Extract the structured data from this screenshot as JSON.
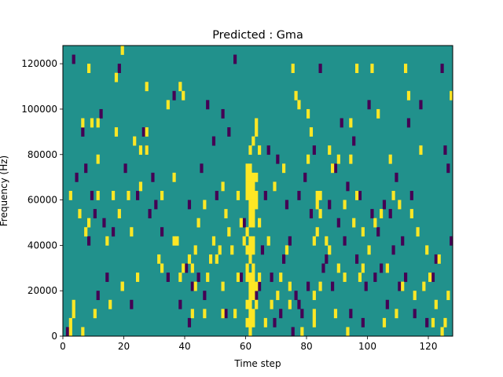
{
  "chart_data": {
    "type": "heatmap",
    "title": "Predicted : Gma",
    "xlabel": "Time step",
    "ylabel": "Frequency (Hz)",
    "xlim": [
      0,
      128
    ],
    "ylim": [
      0,
      128000
    ],
    "x_ticks": [
      {
        "value": 0,
        "label": "0"
      },
      {
        "value": 20,
        "label": "20"
      },
      {
        "value": 40,
        "label": "40"
      },
      {
        "value": 60,
        "label": "60"
      },
      {
        "value": 80,
        "label": "80"
      },
      {
        "value": 100,
        "label": "100"
      },
      {
        "value": 120,
        "label": "120"
      }
    ],
    "y_ticks": [
      {
        "value": 0,
        "label": "0"
      },
      {
        "value": 20000,
        "label": "20000"
      },
      {
        "value": 40000,
        "label": "40000"
      },
      {
        "value": 60000,
        "label": "60000"
      },
      {
        "value": 80000,
        "label": "80000"
      },
      {
        "value": 100000,
        "label": "100000"
      },
      {
        "value": 120000,
        "label": "120000"
      }
    ],
    "grid": false,
    "colormap": "viridis",
    "colors": {
      "background": "#21918c",
      "high": "#fde725",
      "low": "#440154"
    },
    "cell_width_steps": 1,
    "cell_height_hz": 4000,
    "background_value": 0,
    "cells_high": [
      [
        2,
        4000
      ],
      [
        2,
        8000
      ],
      [
        3,
        12000
      ],
      [
        3,
        16000
      ],
      [
        2,
        64000
      ],
      [
        5,
        56000
      ],
      [
        6,
        4000
      ],
      [
        6,
        96000
      ],
      [
        7,
        48000
      ],
      [
        8,
        120000
      ],
      [
        8,
        52000
      ],
      [
        9,
        96000
      ],
      [
        10,
        12000
      ],
      [
        11,
        96000
      ],
      [
        11,
        64000
      ],
      [
        11,
        80000
      ],
      [
        14,
        44000
      ],
      [
        15,
        16000
      ],
      [
        16,
        64000
      ],
      [
        17,
        92000
      ],
      [
        17,
        116000
      ],
      [
        18,
        56000
      ],
      [
        19,
        128000
      ],
      [
        19,
        24000
      ],
      [
        19,
        24000
      ],
      [
        21,
        64000
      ],
      [
        22,
        48000
      ],
      [
        23,
        88000
      ],
      [
        24,
        28000
      ],
      [
        25,
        68000
      ],
      [
        25,
        84000
      ],
      [
        27,
        112000
      ],
      [
        27,
        92000
      ],
      [
        27,
        84000
      ],
      [
        31,
        36000
      ],
      [
        32,
        32000
      ],
      [
        32,
        64000
      ],
      [
        34,
        104000
      ],
      [
        36,
        72000
      ],
      [
        36,
        44000
      ],
      [
        37,
        44000
      ],
      [
        38,
        112000
      ],
      [
        38,
        28000
      ],
      [
        39,
        108000
      ],
      [
        39,
        32000
      ],
      [
        41,
        36000
      ],
      [
        42,
        32000
      ],
      [
        42,
        12000
      ],
      [
        43,
        40000
      ],
      [
        43,
        24000
      ],
      [
        44,
        52000
      ],
      [
        46,
        60000
      ],
      [
        46,
        12000
      ],
      [
        47,
        28000
      ],
      [
        48,
        36000
      ],
      [
        49,
        44000
      ],
      [
        50,
        36000
      ],
      [
        51,
        40000
      ],
      [
        52,
        12000
      ],
      [
        52,
        68000
      ],
      [
        52,
        24000
      ],
      [
        53,
        56000
      ],
      [
        54,
        48000
      ],
      [
        55,
        40000
      ],
      [
        56,
        12000
      ],
      [
        57,
        64000
      ],
      [
        57,
        28000
      ],
      [
        58,
        52000
      ],
      [
        59,
        44000
      ],
      [
        60,
        8000
      ],
      [
        60,
        16000
      ],
      [
        60,
        28000
      ],
      [
        60,
        32000
      ],
      [
        60,
        40000
      ],
      [
        60,
        48000
      ],
      [
        60,
        64000
      ],
      [
        60,
        68000
      ],
      [
        60,
        72000
      ],
      [
        60,
        76000
      ],
      [
        61,
        4000
      ],
      [
        61,
        8000
      ],
      [
        61,
        12000
      ],
      [
        61,
        16000
      ],
      [
        61,
        20000
      ],
      [
        61,
        24000
      ],
      [
        61,
        28000
      ],
      [
        61,
        36000
      ],
      [
        61,
        40000
      ],
      [
        61,
        44000
      ],
      [
        61,
        52000
      ],
      [
        61,
        56000
      ],
      [
        61,
        60000
      ],
      [
        61,
        64000
      ],
      [
        61,
        68000
      ],
      [
        61,
        72000
      ],
      [
        61,
        76000
      ],
      [
        61,
        84000
      ],
      [
        62,
        8000
      ],
      [
        62,
        12000
      ],
      [
        62,
        20000
      ],
      [
        62,
        24000
      ],
      [
        62,
        28000
      ],
      [
        62,
        32000
      ],
      [
        62,
        40000
      ],
      [
        62,
        44000
      ],
      [
        62,
        52000
      ],
      [
        62,
        56000
      ],
      [
        62,
        60000
      ],
      [
        62,
        64000
      ],
      [
        62,
        68000
      ],
      [
        62,
        72000
      ],
      [
        62,
        88000
      ],
      [
        63,
        16000
      ],
      [
        63,
        24000
      ],
      [
        63,
        60000
      ],
      [
        63,
        64000
      ],
      [
        63,
        72000
      ],
      [
        63,
        92000
      ],
      [
        63,
        96000
      ],
      [
        64,
        28000
      ],
      [
        64,
        52000
      ],
      [
        64,
        84000
      ],
      [
        66,
        8000
      ],
      [
        67,
        44000
      ],
      [
        68,
        16000
      ],
      [
        69,
        68000
      ],
      [
        70,
        20000
      ],
      [
        71,
        28000
      ],
      [
        72,
        76000
      ],
      [
        73,
        40000
      ],
      [
        74,
        24000
      ],
      [
        74,
        16000
      ],
      [
        75,
        120000
      ],
      [
        76,
        108000
      ],
      [
        77,
        104000
      ],
      [
        78,
        4000
      ],
      [
        80,
        80000
      ],
      [
        80,
        100000
      ],
      [
        81,
        92000
      ],
      [
        82,
        8000
      ],
      [
        82,
        12000
      ],
      [
        82,
        20000
      ],
      [
        82,
        44000
      ],
      [
        83,
        60000
      ],
      [
        83,
        64000
      ],
      [
        83,
        48000
      ],
      [
        84,
        56000
      ],
      [
        84,
        64000
      ],
      [
        84,
        24000
      ],
      [
        86,
        44000
      ],
      [
        87,
        40000
      ],
      [
        87,
        84000
      ],
      [
        88,
        76000
      ],
      [
        89,
        12000
      ],
      [
        90,
        32000
      ],
      [
        90,
        80000
      ],
      [
        92,
        28000
      ],
      [
        92,
        60000
      ],
      [
        93,
        4000
      ],
      [
        94,
        96000
      ],
      [
        94,
        80000
      ],
      [
        95,
        52000
      ],
      [
        96,
        120000
      ],
      [
        96,
        64000
      ],
      [
        97,
        28000
      ],
      [
        98,
        32000
      ],
      [
        98,
        48000
      ],
      [
        100,
        40000
      ],
      [
        101,
        120000
      ],
      [
        102,
        52000
      ],
      [
        103,
        100000
      ],
      [
        104,
        56000
      ],
      [
        105,
        8000
      ],
      [
        106,
        32000
      ],
      [
        107,
        80000
      ],
      [
        108,
        64000
      ],
      [
        109,
        12000
      ],
      [
        110,
        60000
      ],
      [
        111,
        24000
      ],
      [
        112,
        120000
      ],
      [
        113,
        108000
      ],
      [
        114,
        56000
      ],
      [
        115,
        20000
      ],
      [
        116,
        48000
      ],
      [
        117,
        84000
      ],
      [
        118,
        24000
      ],
      [
        119,
        40000
      ],
      [
        120,
        28000
      ],
      [
        121,
        8000
      ],
      [
        122,
        16000
      ],
      [
        123,
        36000
      ],
      [
        124,
        4000
      ],
      [
        125,
        8000
      ],
      [
        126,
        20000
      ],
      [
        127,
        108000
      ]
    ],
    "cells_low": [
      [
        1,
        4000
      ],
      [
        3,
        124000
      ],
      [
        4,
        72000
      ],
      [
        6,
        92000
      ],
      [
        7,
        76000
      ],
      [
        8,
        44000
      ],
      [
        9,
        64000
      ],
      [
        10,
        56000
      ],
      [
        11,
        20000
      ],
      [
        12,
        100000
      ],
      [
        13,
        52000
      ],
      [
        14,
        28000
      ],
      [
        16,
        48000
      ],
      [
        18,
        120000
      ],
      [
        20,
        76000
      ],
      [
        22,
        16000
      ],
      [
        24,
        64000
      ],
      [
        26,
        92000
      ],
      [
        27,
        84000
      ],
      [
        28,
        56000
      ],
      [
        29,
        72000
      ],
      [
        30,
        60000
      ],
      [
        32,
        48000
      ],
      [
        34,
        28000
      ],
      [
        36,
        108000
      ],
      [
        38,
        16000
      ],
      [
        40,
        32000
      ],
      [
        41,
        60000
      ],
      [
        41,
        8000
      ],
      [
        42,
        24000
      ],
      [
        44,
        28000
      ],
      [
        45,
        76000
      ],
      [
        46,
        20000
      ],
      [
        47,
        104000
      ],
      [
        48,
        36000
      ],
      [
        49,
        88000
      ],
      [
        50,
        64000
      ],
      [
        52,
        100000
      ],
      [
        53,
        12000
      ],
      [
        54,
        92000
      ],
      [
        56,
        124000
      ],
      [
        58,
        28000
      ],
      [
        59,
        52000
      ],
      [
        61,
        36000
      ],
      [
        63,
        20000
      ],
      [
        64,
        24000
      ],
      [
        65,
        40000
      ],
      [
        66,
        64000
      ],
      [
        67,
        84000
      ],
      [
        68,
        28000
      ],
      [
        69,
        8000
      ],
      [
        70,
        80000
      ],
      [
        71,
        12000
      ],
      [
        72,
        36000
      ],
      [
        73,
        60000
      ],
      [
        74,
        44000
      ],
      [
        75,
        4000
      ],
      [
        76,
        20000
      ],
      [
        77,
        16000
      ],
      [
        77,
        64000
      ],
      [
        78,
        12000
      ],
      [
        79,
        72000
      ],
      [
        80,
        24000
      ],
      [
        81,
        56000
      ],
      [
        82,
        84000
      ],
      [
        84,
        120000
      ],
      [
        85,
        32000
      ],
      [
        86,
        36000
      ],
      [
        87,
        60000
      ],
      [
        88,
        24000
      ],
      [
        89,
        76000
      ],
      [
        90,
        52000
      ],
      [
        91,
        96000
      ],
      [
        92,
        44000
      ],
      [
        93,
        68000
      ],
      [
        94,
        12000
      ],
      [
        95,
        88000
      ],
      [
        96,
        36000
      ],
      [
        97,
        64000
      ],
      [
        98,
        8000
      ],
      [
        99,
        24000
      ],
      [
        100,
        104000
      ],
      [
        101,
        56000
      ],
      [
        102,
        28000
      ],
      [
        103,
        48000
      ],
      [
        104,
        32000
      ],
      [
        105,
        60000
      ],
      [
        106,
        16000
      ],
      [
        107,
        56000
      ],
      [
        108,
        40000
      ],
      [
        109,
        72000
      ],
      [
        110,
        24000
      ],
      [
        111,
        44000
      ],
      [
        112,
        28000
      ],
      [
        113,
        96000
      ],
      [
        114,
        64000
      ],
      [
        115,
        12000
      ],
      [
        117,
        104000
      ],
      [
        119,
        8000
      ],
      [
        121,
        28000
      ],
      [
        122,
        36000
      ],
      [
        124,
        120000
      ],
      [
        125,
        84000
      ],
      [
        126,
        76000
      ],
      [
        127,
        44000
      ]
    ]
  }
}
